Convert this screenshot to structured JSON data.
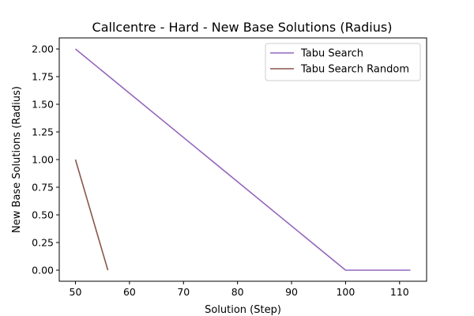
{
  "chart_data": {
    "type": "line",
    "title": "Callcentre - Hard - New Base Solutions (Radius)",
    "xlabel": "Solution (Step)",
    "ylabel": "New Base Solutions (Radius)",
    "xlim": [
      47,
      115
    ],
    "ylim": [
      -0.1,
      2.1
    ],
    "xticks": [
      50,
      60,
      70,
      80,
      90,
      100,
      110
    ],
    "xtick_labels": [
      "50",
      "60",
      "70",
      "80",
      "90",
      "100",
      "110"
    ],
    "yticks": [
      0,
      0.25,
      0.5,
      0.75,
      1.0,
      1.25,
      1.5,
      1.75,
      2.0
    ],
    "ytick_labels": [
      "0.00",
      "0.25",
      "0.50",
      "0.75",
      "1.00",
      "1.25",
      "1.50",
      "1.75",
      "2.00"
    ],
    "grid": false,
    "legend_position": "top-right",
    "series": [
      {
        "name": "Tabu Search",
        "color": "#9467bd",
        "points": [
          [
            50,
            2.0
          ],
          [
            100,
            0.0
          ],
          [
            112,
            0.0
          ]
        ]
      },
      {
        "name": "Tabu Search Random",
        "color": "#8c564b",
        "points": [
          [
            50,
            1.0
          ],
          [
            56,
            0.0
          ]
        ]
      }
    ]
  }
}
